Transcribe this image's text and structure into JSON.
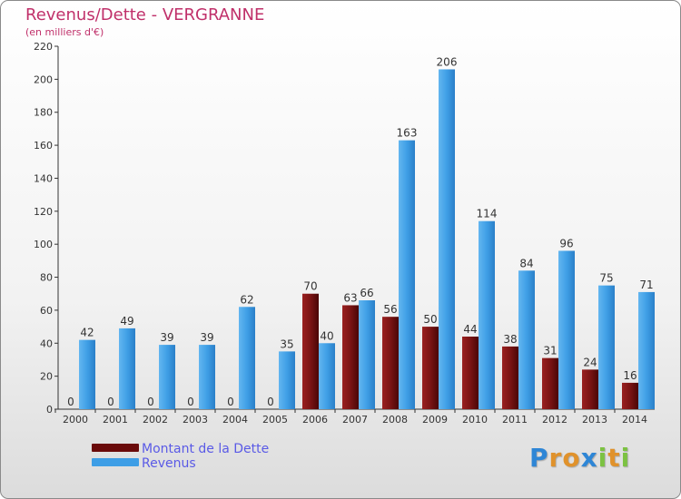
{
  "title": "Revenus/Dette - VERGRANNE",
  "subtitle": "(en milliers d'€)",
  "chart_data": {
    "type": "bar",
    "title": "Revenus/Dette - VERGRANNE",
    "ylabel": "(en milliers d'€)",
    "xlabel": "",
    "categories": [
      "2000",
      "2001",
      "2002",
      "2003",
      "2004",
      "2005",
      "2006",
      "2007",
      "2008",
      "2009",
      "2010",
      "2011",
      "2012",
      "2013",
      "2014"
    ],
    "series": [
      {
        "name": "Montant de la Dette",
        "color": "#7a1010",
        "values": [
          0,
          0,
          0,
          0,
          0,
          0,
          70,
          63,
          56,
          50,
          44,
          38,
          31,
          24,
          16
        ]
      },
      {
        "name": "Revenus",
        "color": "#3e9ee6",
        "values": [
          42,
          49,
          39,
          39,
          62,
          35,
          40,
          66,
          163,
          206,
          114,
          84,
          96,
          75,
          71
        ]
      }
    ],
    "ylim": [
      0,
      220
    ],
    "yticks": [
      0,
      20,
      40,
      60,
      80,
      100,
      120,
      140,
      160,
      180,
      200,
      220
    ],
    "grid": false,
    "legend": "bottom-left"
  },
  "legend": {
    "items": [
      {
        "label": "Montant de la Dette",
        "color": "#6a0a0a"
      },
      {
        "label": "Revenus",
        "color": "#3e9ee6"
      }
    ]
  },
  "logo": {
    "letters": [
      "P",
      "r",
      "o",
      "x",
      "i",
      "t",
      "i"
    ],
    "colors": [
      "#2e86d6",
      "#e0922c",
      "#e0922c",
      "#2e86d6",
      "#7cc242",
      "#e0922c",
      "#7cc242"
    ]
  }
}
